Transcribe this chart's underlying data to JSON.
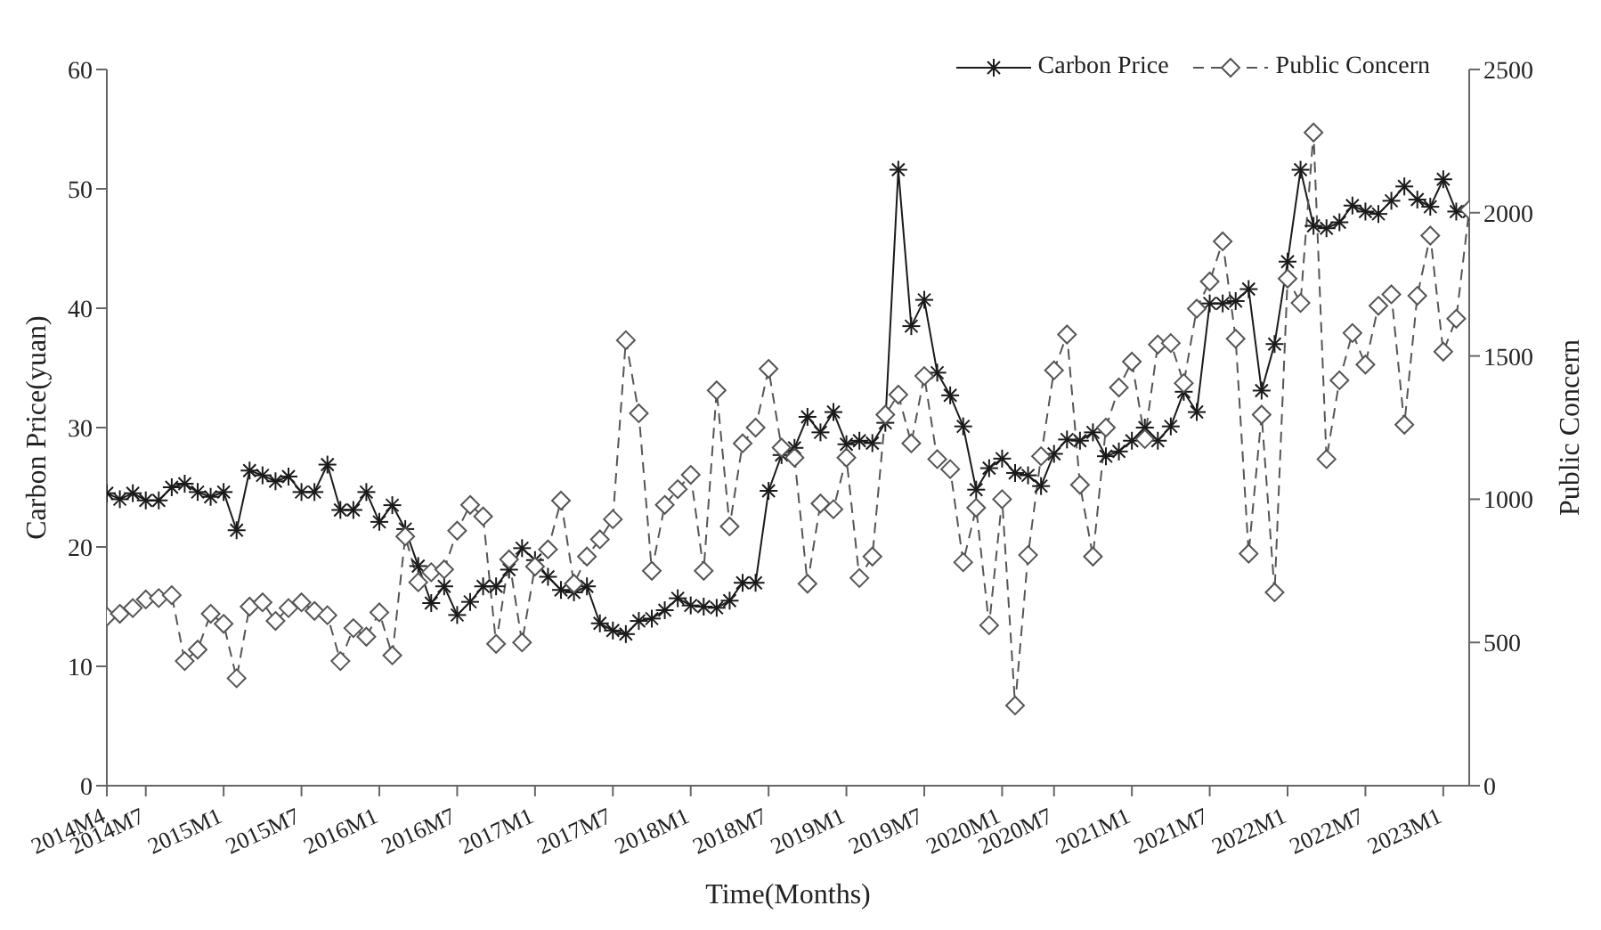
{
  "chart_data": {
    "type": "line",
    "xlabel": "Time(Months)",
    "ylabel": "Carbon Price(yuan)",
    "y2label": "Public Concern",
    "categories": [
      "2014M4",
      null,
      null,
      "2014M7",
      null,
      null,
      null,
      null,
      null,
      "2015M1",
      null,
      null,
      null,
      null,
      null,
      "2015M7",
      null,
      null,
      null,
      null,
      null,
      "2016M1",
      null,
      null,
      null,
      null,
      null,
      "2016M7",
      null,
      null,
      null,
      null,
      null,
      "2017M1",
      null,
      null,
      null,
      null,
      null,
      "2017M7",
      null,
      null,
      null,
      null,
      null,
      "2018M1",
      null,
      null,
      null,
      null,
      null,
      "2018M7",
      null,
      null,
      null,
      null,
      null,
      "2019M1",
      null,
      null,
      null,
      null,
      null,
      "2019M7",
      null,
      null,
      null,
      null,
      null,
      "2020M1",
      null,
      null,
      null,
      "2020M7",
      null,
      null,
      null,
      null,
      null,
      "2021M1",
      null,
      null,
      null,
      null,
      null,
      "2021M7",
      null,
      null,
      null,
      null,
      null,
      "2022M1",
      null,
      null,
      null,
      null,
      null,
      "2022M7",
      null,
      null,
      null,
      null,
      null,
      "2023M1",
      null,
      null
    ],
    "ylim": [
      0,
      60
    ],
    "yticks": [
      0,
      10,
      20,
      30,
      40,
      50,
      60
    ],
    "y2lim": [
      0,
      2500
    ],
    "y2ticks": [
      0,
      500,
      1000,
      1500,
      2000,
      2500
    ],
    "legend": "top right",
    "series": [
      {
        "name": "Carbon Price",
        "color": "#1a1a1a",
        "marker": "cross",
        "line_style": "solid",
        "values": [
          24.5,
          24.0,
          24.5,
          23.9,
          23.9,
          25.0,
          25.3,
          24.6,
          24.2,
          24.6,
          21.4,
          26.4,
          26.0,
          25.5,
          25.9,
          24.6,
          24.6,
          26.9,
          23.1,
          23.1,
          24.6,
          22.1,
          23.5,
          21.5,
          18.4,
          15.3,
          16.7,
          14.3,
          15.4,
          16.7,
          16.7,
          18.1,
          19.9,
          18.9,
          17.5,
          16.4,
          16.2,
          16.7,
          13.6,
          13.0,
          12.7,
          13.8,
          14.0,
          14.7,
          15.7,
          15.1,
          15.0,
          14.9,
          15.5,
          17.0,
          17.0,
          24.7,
          27.7,
          28.3,
          30.9,
          29.6,
          31.3,
          28.6,
          28.9,
          28.7,
          30.4,
          51.6,
          38.5,
          40.7,
          34.6,
          32.7,
          30.1,
          24.8,
          26.6,
          27.4,
          26.2,
          26.0,
          25.1,
          27.8,
          29.0,
          28.9,
          29.6,
          27.6,
          28.0,
          28.9,
          30.0,
          28.9,
          30.1,
          33.0,
          31.3,
          40.4,
          40.4,
          40.6,
          41.6,
          33.1,
          37.0,
          43.9,
          51.6,
          46.9,
          46.7,
          47.2,
          48.6,
          48.1,
          47.9,
          49.0,
          50.2,
          49.1,
          48.5,
          50.8,
          48.1,
          48.1
        ]
      },
      {
        "name": "Public Concern",
        "color": "#555555",
        "marker": "diamond",
        "line_style": "dashed",
        "axis": "y2",
        "values": [
          590,
          600,
          620,
          650,
          655,
          665,
          435,
          475,
          600,
          565,
          375,
          625,
          640,
          575,
          620,
          640,
          610,
          595,
          435,
          550,
          520,
          605,
          455,
          870,
          710,
          745,
          755,
          890,
          980,
          940,
          495,
          790,
          500,
          765,
          825,
          995,
          705,
          800,
          860,
          930,
          1555,
          1300,
          750,
          980,
          1035,
          1085,
          750,
          1380,
          905,
          1195,
          1250,
          1455,
          1180,
          1145,
          705,
          985,
          965,
          1145,
          725,
          800,
          1295,
          1365,
          1195,
          1430,
          1140,
          1105,
          780,
          970,
          560,
          1000,
          280,
          805,
          1150,
          1450,
          1575,
          1050,
          800,
          1250,
          1390,
          1480,
          1210,
          1540,
          1545,
          1405,
          1665,
          1760,
          1900,
          1560,
          810,
          1295,
          675,
          1770,
          1685,
          2280,
          1140,
          1415,
          1580,
          1470,
          1675,
          1715,
          1260,
          1710,
          1920,
          1515,
          1630,
          2010
        ]
      }
    ]
  }
}
